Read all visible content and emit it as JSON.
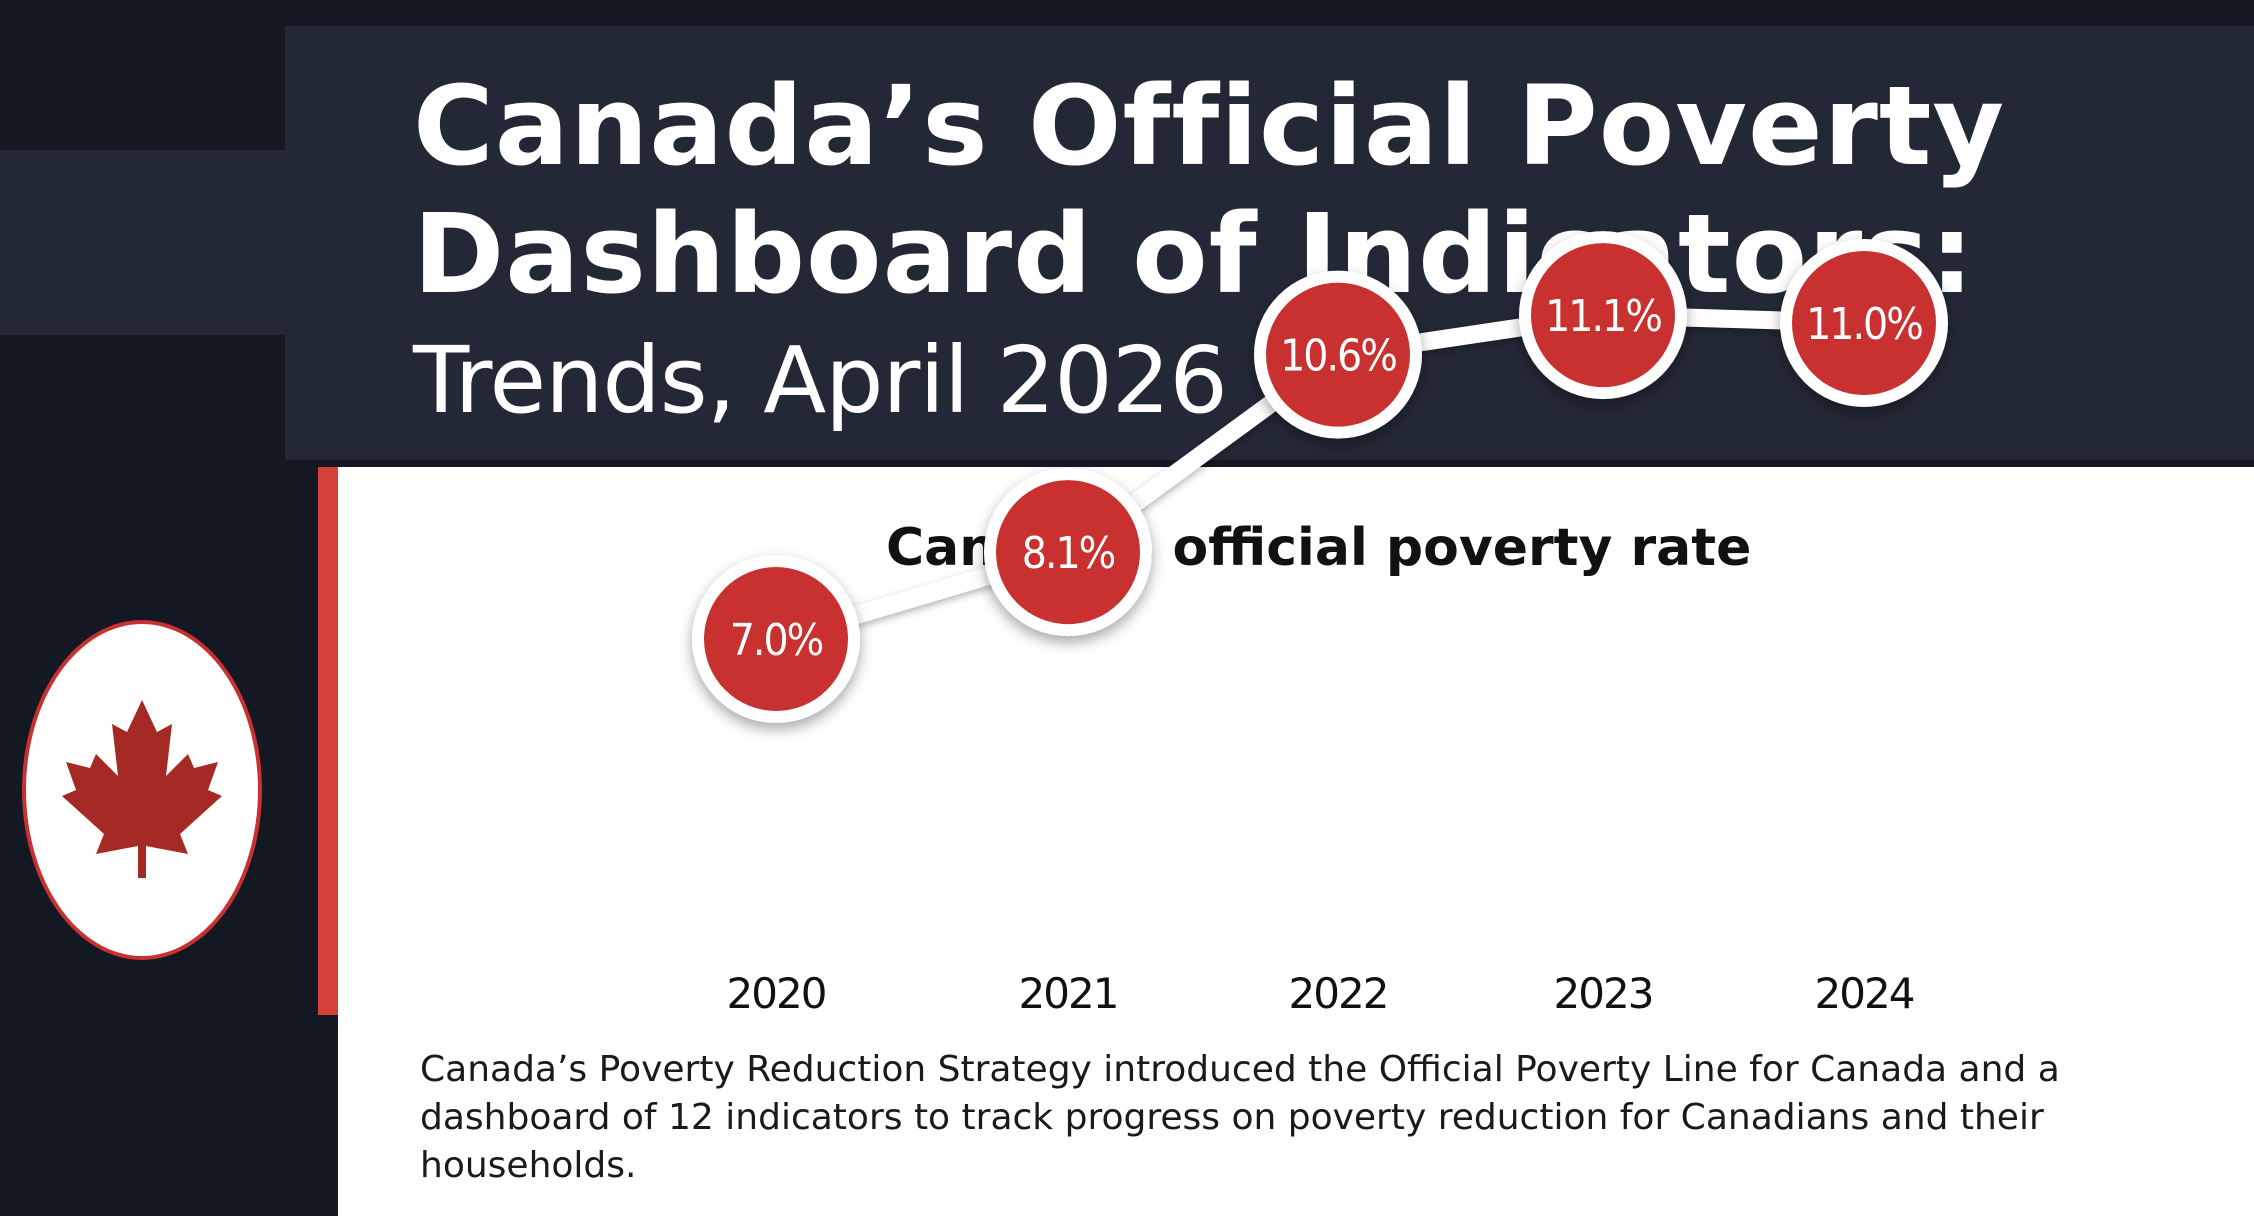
{
  "header": {
    "title_line1": "Canada’s Official Poverty",
    "title_line2": "Dashboard of Indicators:",
    "subtitle": "Trends, April 2026"
  },
  "colors": {
    "background": "#141823",
    "header": "#232836",
    "accent_red": "#d5403a",
    "bubble_red": "#c8312f",
    "leaf_red": "#a52a26"
  },
  "icons": {
    "flag": "maple-leaf-icon"
  },
  "chart_data": {
    "type": "line",
    "title": "Canada’s official poverty rate",
    "categories": [
      "2020",
      "2021",
      "2022",
      "2023",
      "2024"
    ],
    "values": [
      7.0,
      8.1,
      10.6,
      11.1,
      11.0
    ],
    "value_labels": [
      "7.0%",
      "8.1%",
      "10.6%",
      "11.1%",
      "11.0%"
    ],
    "grid": false,
    "legend": "none"
  },
  "description": "Canada’s Poverty Reduction Strategy introduced the Official Poverty Line for Canada and a dashboard of 12 indicators to track progress on poverty reduction for Canadians and their households."
}
